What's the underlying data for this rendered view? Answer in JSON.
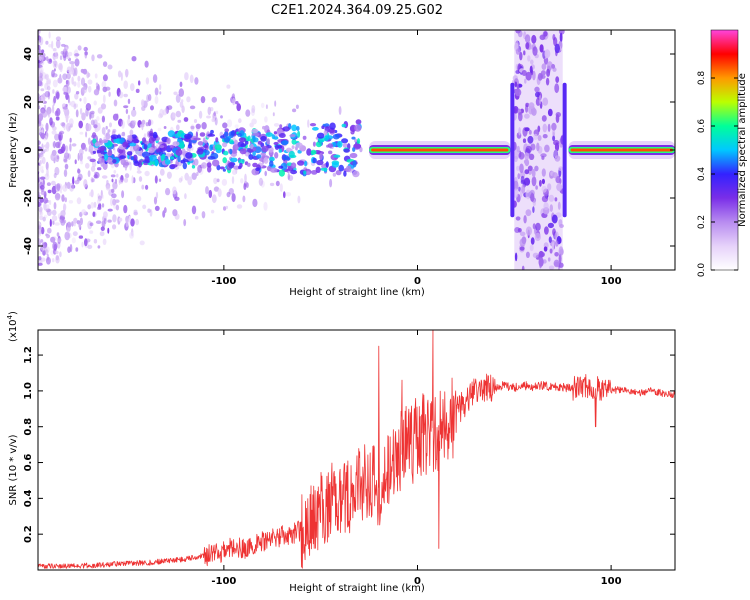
{
  "title": "C2E1.2024.364.09.25.G02",
  "colors": {
    "line": "#ee3333",
    "frame": "#000000",
    "background": "#ffffff",
    "colormap": [
      "#ffffff",
      "#e6d2fa",
      "#b88cf0",
      "#7a2ee8",
      "#3322ff",
      "#00c8ff",
      "#00ff99",
      "#bbff00",
      "#ff9900",
      "#ff0000",
      "#ff44dd"
    ]
  },
  "chart_data": [
    {
      "type": "heatmap",
      "title": "C2E1.2024.364.09.25.G02",
      "xlabel": "Height of straight line (km)",
      "ylabel": "Frequency (Hz)",
      "xlim": [
        -196,
        133
      ],
      "ylim": [
        -50,
        50
      ],
      "x_ticks": [
        -100,
        0,
        100
      ],
      "x_tick_labels": [
        "-100",
        "0",
        "100"
      ],
      "y_ticks": [
        -40,
        -20,
        0,
        20,
        40
      ],
      "y_tick_labels": [
        "-40",
        "-20",
        "0",
        "20",
        "40"
      ],
      "colorbar": {
        "label": "Normalized spectral amplitude",
        "range": [
          0,
          1
        ],
        "ticks": [
          0.0,
          0.2,
          0.4,
          0.6,
          0.8
        ],
        "tick_labels": [
          "0.0",
          "0.2",
          "0.4",
          "0.6",
          "0.8"
        ]
      },
      "features": [
        {
          "name": "scattered noise",
          "x_range": [
            -196,
            -25
          ],
          "freq_range": [
            -50,
            50
          ],
          "level": 0.15
        },
        {
          "name": "broadband band",
          "x_range": [
            -168,
            -30
          ],
          "freq_center": 0,
          "freq_width": 10,
          "level": 0.35
        },
        {
          "name": "tone",
          "x_range": [
            -25,
            48
          ],
          "freq_center": 0,
          "freq_width": 3,
          "level": 0.85
        },
        {
          "name": "noise column",
          "x_range": [
            50,
            75
          ],
          "freq_range": [
            -50,
            50
          ],
          "level": 0.15
        },
        {
          "name": "tone",
          "x_range": [
            78,
            133
          ],
          "freq_center": 0,
          "freq_width": 3,
          "level": 0.85
        }
      ]
    },
    {
      "type": "line",
      "xlabel": "Height of straight line (km)",
      "ylabel": "SNR (10 * v/v)",
      "y_multiplier": "(x10",
      "y_multiplier_exp": "4",
      "xlim": [
        -196,
        133
      ],
      "ylim": [
        0,
        1.34
      ],
      "x_ticks": [
        -100,
        0,
        100
      ],
      "x_tick_labels": [
        "-100",
        "0",
        "100"
      ],
      "y_ticks": [
        0.2,
        0.4,
        0.6,
        0.8,
        1.0,
        1.2
      ],
      "y_tick_labels": [
        "0.2",
        "0.4",
        "0.6",
        "0.8",
        "1.0",
        "1.2"
      ],
      "series": [
        {
          "name": "SNR",
          "x": [
            -196,
            -180,
            -160,
            -150,
            -140,
            -130,
            -120,
            -110,
            -100,
            -95,
            -90,
            -85,
            -80,
            -75,
            -70,
            -65,
            -60,
            -55,
            -50,
            -45,
            -40,
            -35,
            -30,
            -25,
            -20,
            -15,
            -10,
            -5,
            0,
            5,
            10,
            15,
            20,
            25,
            30,
            35,
            40,
            45,
            50,
            55,
            60,
            65,
            70,
            75,
            80,
            85,
            90,
            95,
            100,
            105,
            110,
            115,
            120,
            125,
            133
          ],
          "values": [
            0.02,
            0.02,
            0.03,
            0.04,
            0.04,
            0.05,
            0.06,
            0.08,
            0.1,
            0.13,
            0.12,
            0.14,
            0.16,
            0.17,
            0.19,
            0.2,
            0.22,
            0.27,
            0.33,
            0.38,
            0.42,
            0.4,
            0.48,
            0.52,
            0.46,
            0.55,
            0.62,
            0.68,
            0.74,
            0.78,
            0.8,
            0.84,
            0.88,
            0.94,
            1.0,
            1.02,
            1.02,
            1.03,
            1.02,
            1.03,
            1.02,
            1.03,
            1.02,
            1.02,
            1.01,
            1.02,
            1.03,
            0.99,
            1.0,
            1.01,
            1.0,
            0.99,
            1.0,
            0.99,
            0.98
          ],
          "spikes": [
            {
              "x": -20,
              "value": 1.25
            },
            {
              "x": -8,
              "value": 1.06
            },
            {
              "x": 8,
              "value": 1.34
            },
            {
              "x": 11,
              "value": 0.12
            },
            {
              "x": 92,
              "value": 0.8
            },
            {
              "x": 93,
              "value": 1.08
            }
          ]
        }
      ]
    }
  ]
}
